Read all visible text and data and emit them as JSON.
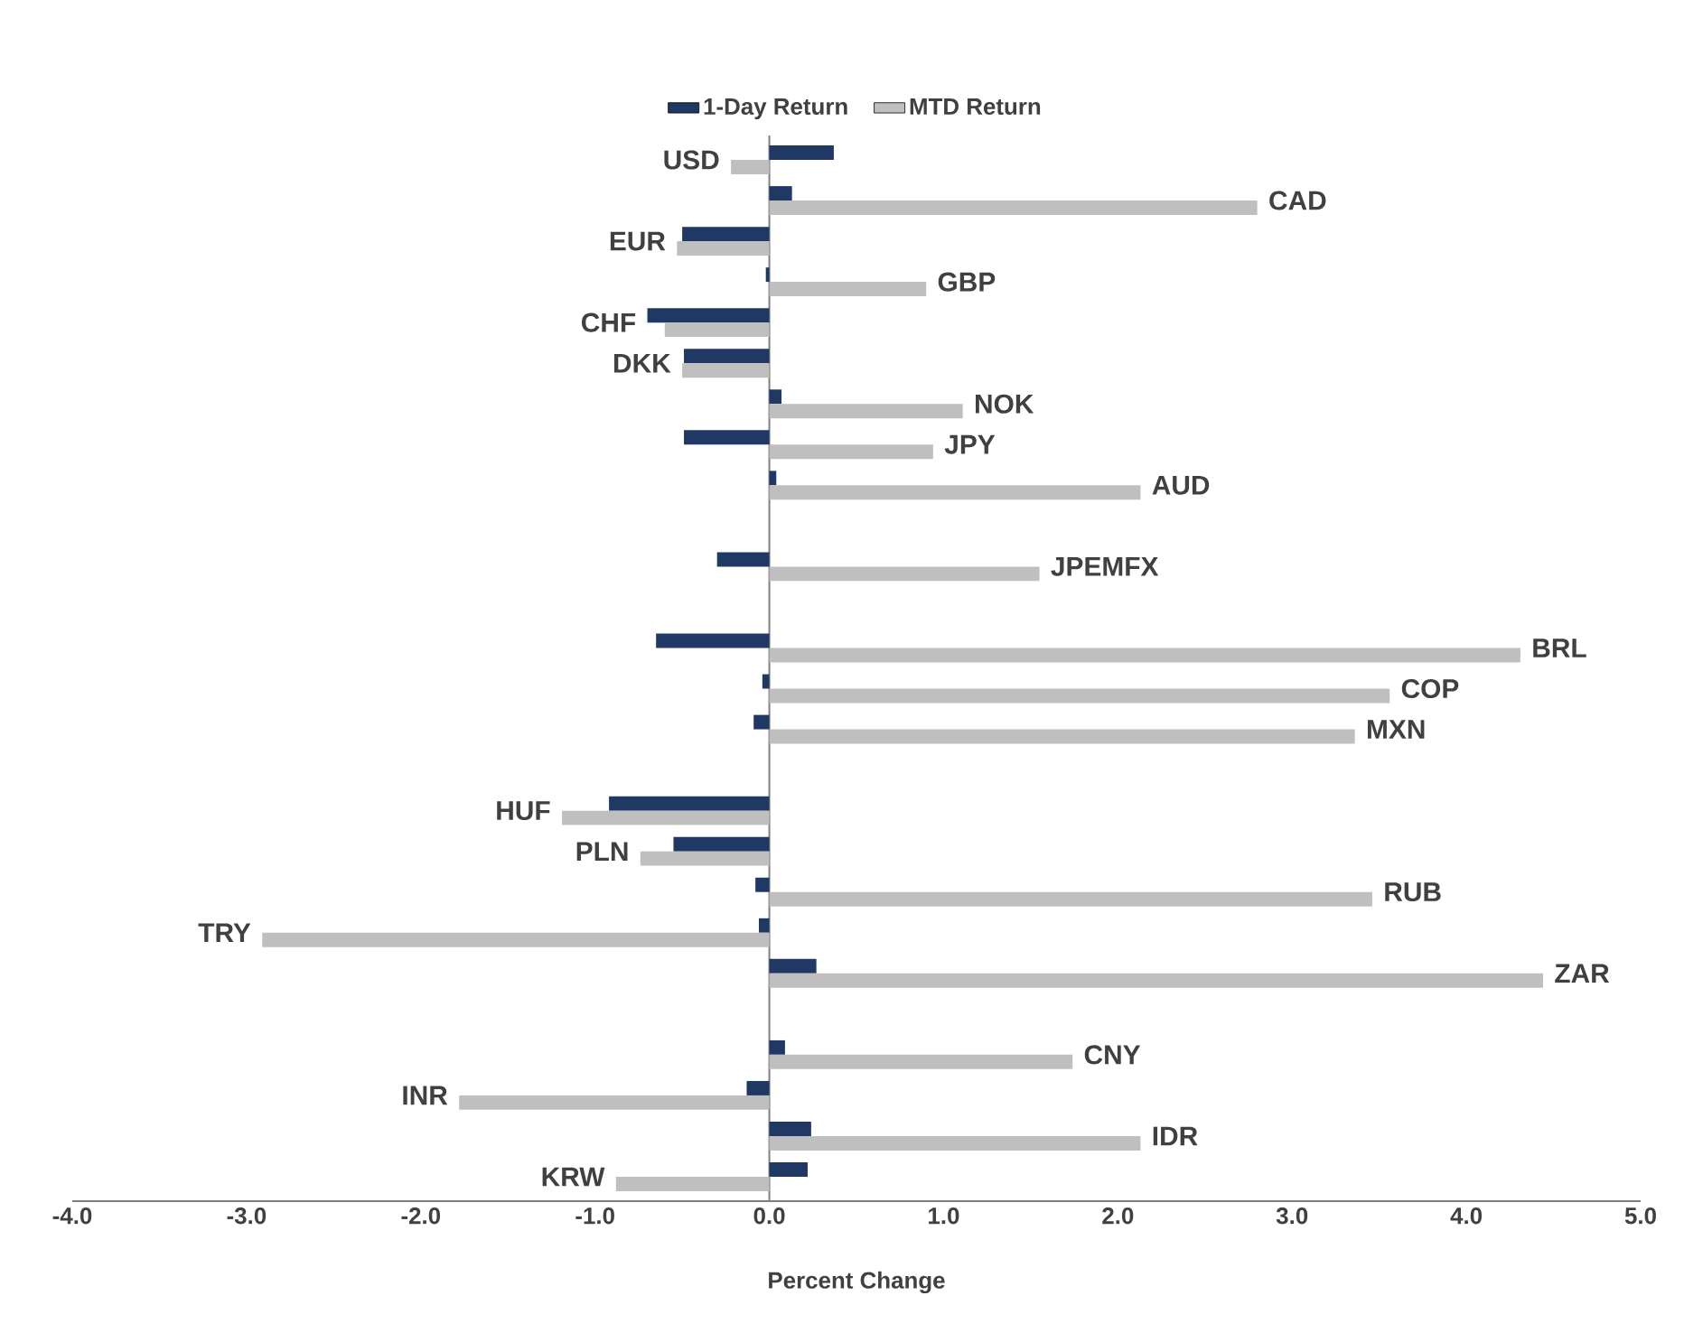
{
  "chart_data": {
    "type": "bar",
    "orientation": "horizontal",
    "xlabel": "Percent Change",
    "categories": [
      "USD",
      "CAD",
      "EUR",
      "GBP",
      "CHF",
      "DKK",
      "NOK",
      "JPY",
      "AUD",
      null,
      "JPEMFX",
      null,
      "BRL",
      "COP",
      "MXN",
      null,
      "HUF",
      "PLN",
      "RUB",
      "TRY",
      "ZAR",
      null,
      "CNY",
      "INR",
      "IDR",
      "KRW"
    ],
    "series": [
      {
        "name": "1-Day Return",
        "color": "#1f3864",
        "values": [
          0.37,
          0.13,
          -0.5,
          -0.02,
          -0.7,
          -0.49,
          0.07,
          -0.49,
          0.04,
          null,
          -0.3,
          null,
          -0.65,
          -0.04,
          -0.09,
          null,
          -0.92,
          -0.55,
          -0.08,
          -0.06,
          0.27,
          null,
          0.09,
          -0.13,
          0.24,
          0.22
        ]
      },
      {
        "name": "MTD Return",
        "color": "#bfbfbf",
        "values": [
          -0.22,
          2.8,
          -0.53,
          0.9,
          -0.6,
          -0.5,
          1.11,
          0.94,
          2.13,
          null,
          1.55,
          null,
          4.31,
          3.56,
          3.36,
          null,
          -1.19,
          -0.74,
          3.46,
          -2.91,
          4.44,
          null,
          1.74,
          -1.78,
          2.13,
          -0.88
        ]
      }
    ],
    "xlim": [
      -4,
      5
    ],
    "xticks": [
      {
        "value": -4,
        "label": "-4.0"
      },
      {
        "value": -3,
        "label": "-3.0"
      },
      {
        "value": -2,
        "label": "-2.0"
      },
      {
        "value": -1,
        "label": "-1.0"
      },
      {
        "value": 0,
        "label": "0.0"
      },
      {
        "value": 1,
        "label": "1.0"
      },
      {
        "value": 2,
        "label": "2.0"
      },
      {
        "value": 3,
        "label": "3.0"
      },
      {
        "value": 4,
        "label": "4.0"
      },
      {
        "value": 5,
        "label": "5.0"
      }
    ],
    "legend": "top"
  }
}
